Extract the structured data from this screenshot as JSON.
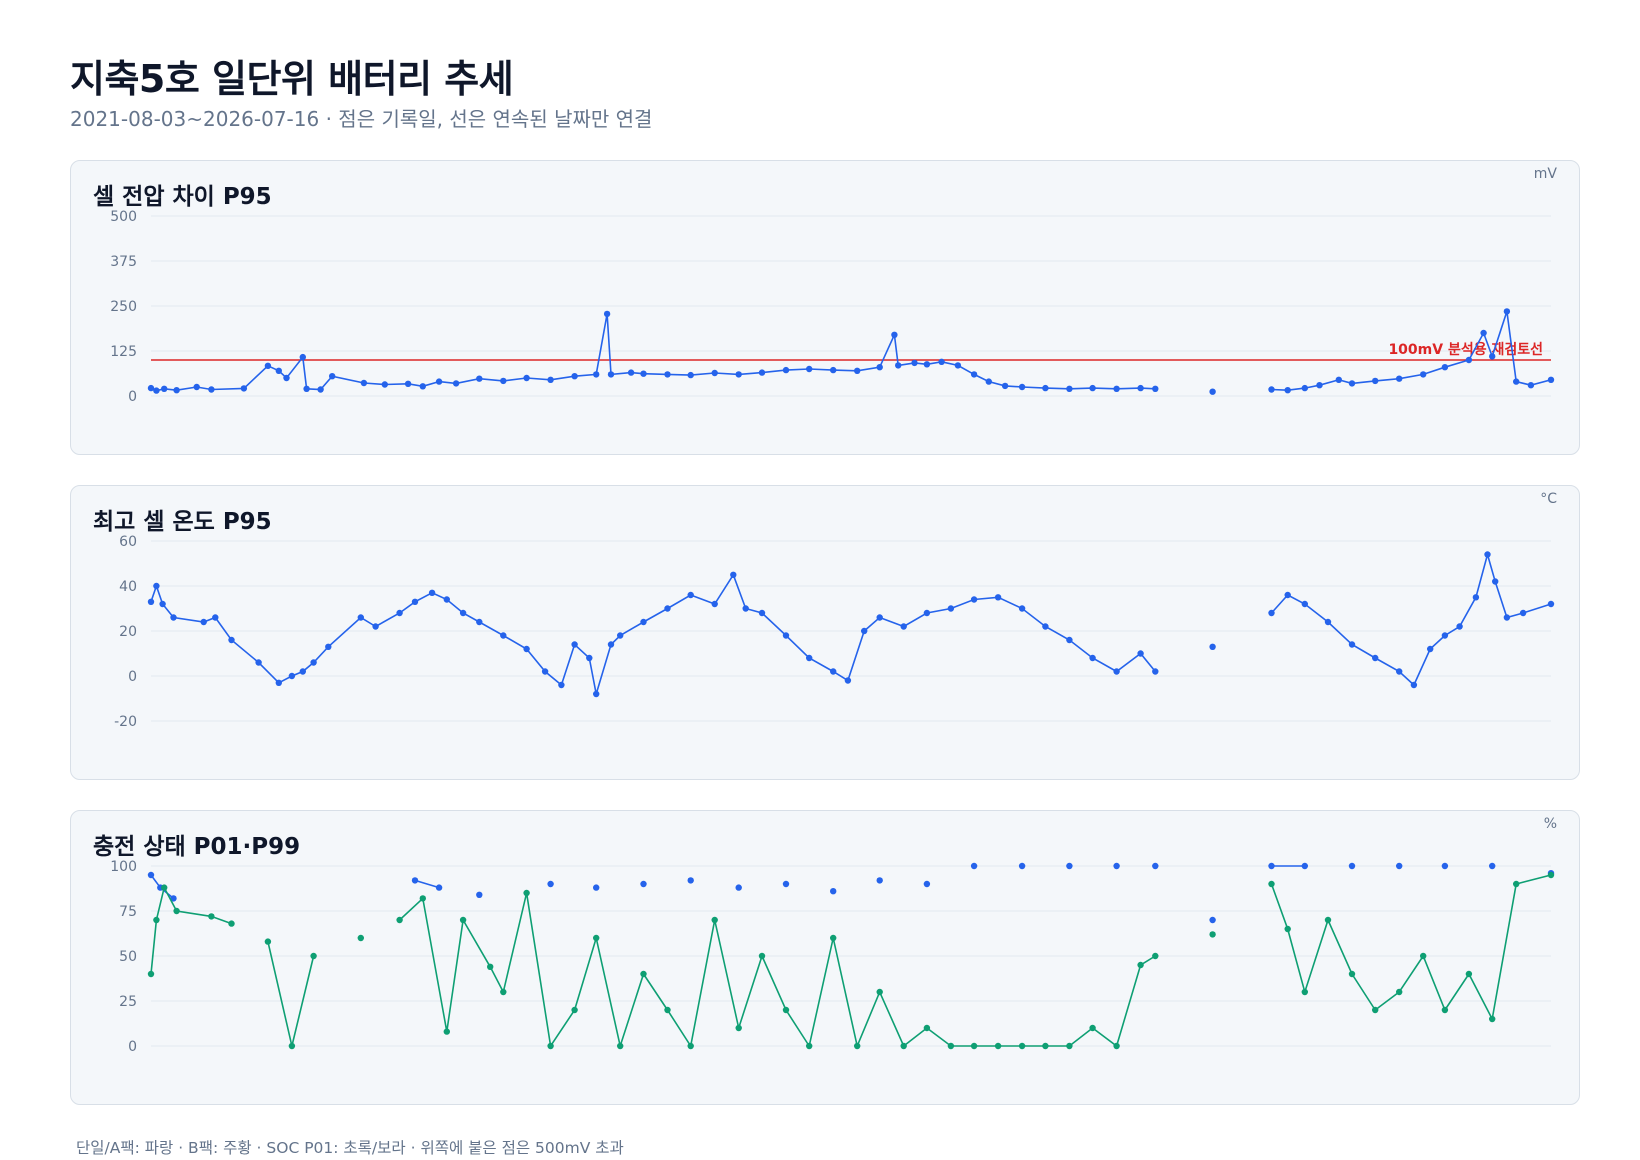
{
  "title": "지축5호 일단위 배터리 추세",
  "subtitle": "2021-08-03~2026-07-16 · 점은 기록일, 선은 연속된 날짜만 연결",
  "footer": "단일/A팩: 파랑 · B팩: 주황 · SOC P01: 초록/보라 · 위쪽에 붙은 점은 500mV 초과",
  "colors": {
    "series_primary": "#2563eb",
    "series_secondary": "#0e9f73",
    "reference_line": "#dc2626",
    "grid": "#e2e8f0",
    "panel_bg": "#f4f7fa",
    "panel_border": "#d8dfe7"
  },
  "chart_data": [
    {
      "type": "line",
      "title": "셀 전압 차이 P95",
      "unit": "mV",
      "xlim": [
        "2021-08-03",
        "2026-07-16"
      ],
      "ylim": [
        0,
        500
      ],
      "yticks": [
        0,
        125,
        250,
        375,
        500
      ],
      "grid": true,
      "reference_line": {
        "value": 100,
        "label": "100mV 분석용 재검토선"
      },
      "series": [
        {
          "color": "#2563eb",
          "points": [
            [
              "2021-08-03",
              22
            ],
            [
              "2021-08-10",
              15
            ],
            [
              "2021-08-20",
              20
            ],
            [
              "2021-09-05",
              16
            ],
            [
              "2021-10-01",
              25
            ],
            [
              "2021-10-20",
              18
            ],
            [
              "2021-12-01",
              21
            ],
            [
              "2022-01-01",
              84
            ],
            [
              "2022-01-15",
              70
            ],
            [
              "2022-01-25",
              50
            ],
            [
              "2022-02-15",
              108
            ],
            [
              "2022-02-20",
              20
            ],
            [
              "2022-03-10",
              18
            ],
            [
              "2022-03-25",
              55
            ],
            [
              "2022-05-05",
              36
            ],
            [
              "2022-06-01",
              32
            ],
            [
              "2022-07-01",
              34
            ],
            [
              "2022-07-20",
              27
            ],
            [
              "2022-08-10",
              40
            ],
            [
              "2022-09-01",
              35
            ],
            [
              "2022-10-01",
              48
            ],
            [
              "2022-11-01",
              42
            ],
            [
              "2022-12-01",
              50
            ],
            [
              "2023-01-01",
              45
            ],
            [
              "2023-02-01",
              55
            ],
            [
              "2023-03-01",
              60
            ],
            [
              "2023-03-15",
              228
            ],
            [
              "2023-03-20",
              60
            ],
            [
              "2023-04-15",
              65
            ],
            [
              "2023-05-01",
              62
            ],
            [
              "2023-06-01",
              60
            ],
            [
              "2023-07-01",
              58
            ],
            [
              "2023-08-01",
              64
            ],
            [
              "2023-09-01",
              60
            ],
            [
              "2023-10-01",
              65
            ],
            [
              "2023-11-01",
              72
            ],
            [
              "2023-12-01",
              75
            ],
            [
              "2024-01-01",
              72
            ],
            [
              "2024-02-01",
              70
            ],
            [
              "2024-03-01",
              80
            ],
            [
              "2024-03-20",
              170
            ],
            [
              "2024-03-25",
              85
            ],
            [
              "2024-04-15",
              92
            ],
            [
              "2024-05-01",
              88
            ],
            [
              "2024-05-20",
              95
            ],
            [
              "2024-06-10",
              85
            ],
            [
              "2024-07-01",
              60
            ],
            [
              "2024-07-20",
              40
            ],
            [
              "2024-08-10",
              28
            ],
            [
              "2024-09-01",
              25
            ],
            [
              "2024-10-01",
              22
            ],
            [
              "2024-11-01",
              20
            ],
            [
              "2024-12-01",
              22
            ],
            [
              "2025-01-01",
              20
            ],
            [
              "2025-02-01",
              22
            ],
            [
              "2025-02-20",
              20
            ],
            [
              "2025-05-05",
              12
            ],
            [
              "2025-07-20",
              18
            ],
            [
              "2025-08-10",
              16
            ],
            [
              "2025-09-01",
              22
            ],
            [
              "2025-09-20",
              30
            ],
            [
              "2025-10-15",
              45
            ],
            [
              "2025-11-01",
              35
            ],
            [
              "2025-12-01",
              42
            ],
            [
              "2026-01-01",
              48
            ],
            [
              "2026-02-01",
              60
            ],
            [
              "2026-03-01",
              80
            ],
            [
              "2026-04-01",
              100
            ],
            [
              "2026-04-20",
              175
            ],
            [
              "2026-05-01",
              110
            ],
            [
              "2026-05-20",
              235
            ],
            [
              "2026-06-01",
              40
            ],
            [
              "2026-06-20",
              30
            ],
            [
              "2026-07-16",
              45
            ]
          ]
        }
      ]
    },
    {
      "type": "line",
      "title": "최고 셀 온도 P95",
      "unit": "°C",
      "xlim": [
        "2021-08-03",
        "2026-07-16"
      ],
      "ylim": [
        -20,
        60
      ],
      "yticks": [
        -20,
        0,
        20,
        40,
        60
      ],
      "grid": true,
      "series": [
        {
          "color": "#2563eb",
          "points": [
            [
              "2021-08-03",
              33
            ],
            [
              "2021-08-10",
              40
            ],
            [
              "2021-08-18",
              32
            ],
            [
              "2021-09-01",
              26
            ],
            [
              "2021-10-10",
              24
            ],
            [
              "2021-10-25",
              26
            ],
            [
              "2021-11-15",
              16
            ],
            [
              "2021-12-20",
              6
            ],
            [
              "2022-01-15",
              -3
            ],
            [
              "2022-02-01",
              0
            ],
            [
              "2022-02-15",
              2
            ],
            [
              "2022-03-01",
              6
            ],
            [
              "2022-03-20",
              13
            ],
            [
              "2022-05-01",
              26
            ],
            [
              "2022-05-20",
              22
            ],
            [
              "2022-06-20",
              28
            ],
            [
              "2022-07-10",
              33
            ],
            [
              "2022-08-01",
              37
            ],
            [
              "2022-08-20",
              34
            ],
            [
              "2022-09-10",
              28
            ],
            [
              "2022-10-01",
              24
            ],
            [
              "2022-11-01",
              18
            ],
            [
              "2022-12-01",
              12
            ],
            [
              "2022-12-25",
              2
            ],
            [
              "2023-01-15",
              -4
            ],
            [
              "2023-02-01",
              14
            ],
            [
              "2023-02-20",
              8
            ],
            [
              "2023-03-01",
              -8
            ],
            [
              "2023-03-20",
              14
            ],
            [
              "2023-04-01",
              18
            ],
            [
              "2023-05-01",
              24
            ],
            [
              "2023-06-01",
              30
            ],
            [
              "2023-07-01",
              36
            ],
            [
              "2023-08-01",
              32
            ],
            [
              "2023-08-25",
              45
            ],
            [
              "2023-09-10",
              30
            ],
            [
              "2023-10-01",
              28
            ],
            [
              "2023-11-01",
              18
            ],
            [
              "2023-12-01",
              8
            ],
            [
              "2024-01-01",
              2
            ],
            [
              "2024-01-20",
              -2
            ],
            [
              "2024-02-10",
              20
            ],
            [
              "2024-03-01",
              26
            ],
            [
              "2024-04-01",
              22
            ],
            [
              "2024-05-01",
              28
            ],
            [
              "2024-06-01",
              30
            ],
            [
              "2024-07-01",
              34
            ],
            [
              "2024-08-01",
              35
            ],
            [
              "2024-09-01",
              30
            ],
            [
              "2024-10-01",
              22
            ],
            [
              "2024-11-01",
              16
            ],
            [
              "2024-12-01",
              8
            ],
            [
              "2025-01-01",
              2
            ],
            [
              "2025-02-01",
              10
            ],
            [
              "2025-02-20",
              2
            ],
            [
              "2025-05-05",
              13
            ],
            [
              "2025-07-20",
              28
            ],
            [
              "2025-08-10",
              36
            ],
            [
              "2025-09-01",
              32
            ],
            [
              "2025-10-01",
              24
            ],
            [
              "2025-11-01",
              14
            ],
            [
              "2025-12-01",
              8
            ],
            [
              "2026-01-01",
              2
            ],
            [
              "2026-01-20",
              -4
            ],
            [
              "2026-02-10",
              12
            ],
            [
              "2026-03-01",
              18
            ],
            [
              "2026-03-20",
              22
            ],
            [
              "2026-04-10",
              35
            ],
            [
              "2026-04-25",
              54
            ],
            [
              "2026-05-05",
              42
            ],
            [
              "2026-05-20",
              26
            ],
            [
              "2026-06-10",
              28
            ],
            [
              "2026-07-16",
              32
            ]
          ]
        }
      ]
    },
    {
      "type": "line",
      "title": "충전 상태 P01·P99",
      "unit": "%",
      "xlim": [
        "2021-08-03",
        "2026-07-16"
      ],
      "ylim": [
        0,
        100
      ],
      "yticks": [
        0,
        25,
        50,
        75,
        100
      ],
      "grid": true,
      "series": [
        {
          "color": "#2563eb",
          "points": [
            [
              "2021-08-03",
              95
            ],
            [
              "2021-08-15",
              88
            ],
            [
              "2021-09-01",
              82
            ],
            [
              "2022-07-10",
              92
            ],
            [
              "2022-08-10",
              88
            ],
            [
              "2022-10-01",
              84
            ],
            [
              "2023-01-01",
              90
            ],
            [
              "2023-03-01",
              88
            ],
            [
              "2023-05-01",
              90
            ],
            [
              "2023-07-01",
              92
            ],
            [
              "2023-09-01",
              88
            ],
            [
              "2023-11-01",
              90
            ],
            [
              "2024-01-01",
              86
            ],
            [
              "2024-03-01",
              92
            ],
            [
              "2024-05-01",
              90
            ],
            [
              "2024-07-01",
              100
            ],
            [
              "2024-09-01",
              100
            ],
            [
              "2024-11-01",
              100
            ],
            [
              "2025-01-01",
              100
            ],
            [
              "2025-02-20",
              100
            ],
            [
              "2025-05-05",
              70
            ],
            [
              "2025-07-20",
              100
            ],
            [
              "2025-09-01",
              100
            ],
            [
              "2025-11-01",
              100
            ],
            [
              "2026-01-01",
              100
            ],
            [
              "2026-03-01",
              100
            ],
            [
              "2026-05-01",
              100
            ],
            [
              "2026-07-16",
              96
            ]
          ]
        },
        {
          "color": "#0e9f73",
          "points": [
            [
              "2021-08-03",
              40
            ],
            [
              "2021-08-10",
              70
            ],
            [
              "2021-08-20",
              88
            ],
            [
              "2021-09-05",
              75
            ],
            [
              "2021-10-20",
              72
            ],
            [
              "2021-11-15",
              68
            ],
            [
              "2022-01-01",
              58
            ],
            [
              "2022-03-01",
              50
            ],
            [
              "2022-02-01",
              0
            ],
            [
              "2022-05-01",
              60
            ],
            [
              "2022-06-20",
              70
            ],
            [
              "2022-07-20",
              82
            ],
            [
              "2022-08-20",
              8
            ],
            [
              "2022-09-10",
              70
            ],
            [
              "2022-10-15",
              44
            ],
            [
              "2022-11-01",
              30
            ],
            [
              "2022-12-01",
              85
            ],
            [
              "2023-01-01",
              0
            ],
            [
              "2023-02-01",
              20
            ],
            [
              "2023-03-01",
              60
            ],
            [
              "2023-04-01",
              0
            ],
            [
              "2023-05-01",
              40
            ],
            [
              "2023-06-01",
              20
            ],
            [
              "2023-07-01",
              0
            ],
            [
              "2023-08-01",
              70
            ],
            [
              "2023-09-01",
              10
            ],
            [
              "2023-10-01",
              50
            ],
            [
              "2023-11-01",
              20
            ],
            [
              "2023-12-01",
              0
            ],
            [
              "2024-01-01",
              60
            ],
            [
              "2024-02-01",
              0
            ],
            [
              "2024-03-01",
              30
            ],
            [
              "2024-04-01",
              0
            ],
            [
              "2024-05-01",
              10
            ],
            [
              "2024-06-01",
              0
            ],
            [
              "2024-07-01",
              0
            ],
            [
              "2024-08-01",
              0
            ],
            [
              "2024-09-01",
              0
            ],
            [
              "2024-10-01",
              0
            ],
            [
              "2024-11-01",
              0
            ],
            [
              "2024-12-01",
              10
            ],
            [
              "2025-01-01",
              0
            ],
            [
              "2025-02-01",
              45
            ],
            [
              "2025-02-20",
              50
            ],
            [
              "2025-05-05",
              62
            ],
            [
              "2025-07-20",
              90
            ],
            [
              "2025-08-10",
              65
            ],
            [
              "2025-09-01",
              30
            ],
            [
              "2025-10-01",
              70
            ],
            [
              "2025-11-01",
              40
            ],
            [
              "2025-12-01",
              20
            ],
            [
              "2026-01-01",
              30
            ],
            [
              "2026-02-01",
              50
            ],
            [
              "2026-03-01",
              20
            ],
            [
              "2026-04-01",
              40
            ],
            [
              "2026-05-01",
              15
            ],
            [
              "2026-06-01",
              90
            ],
            [
              "2026-07-16",
              95
            ]
          ]
        }
      ]
    }
  ]
}
